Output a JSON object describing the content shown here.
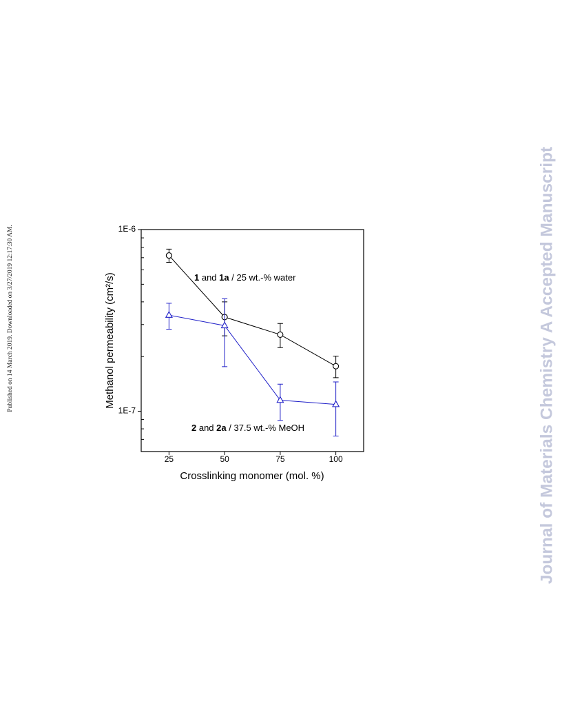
{
  "page": {
    "published_note": "Published on 14 March 2019. Downloaded on 3/27/2019 12:17:30 AM.",
    "watermark": "Journal of Materials Chemistry A Accepted Manuscript"
  },
  "chart_data": {
    "type": "line",
    "x_label": "Crosslinking monomer (mol. %)",
    "y_label": "Methanol permeability (cm²/s)",
    "x": [
      25,
      50,
      75,
      100
    ],
    "xlim": [
      12.5,
      112.5
    ],
    "xticks": [
      25,
      50,
      75,
      100
    ],
    "ylim": [
      6e-08,
      1e-06
    ],
    "log_y": true,
    "yticks": [
      {
        "value": 1e-06,
        "label": "1E-6"
      },
      {
        "value": 1e-07,
        "label": "1E-7"
      }
    ],
    "yminorticks": [
      6e-08,
      7e-08,
      8e-08,
      9e-08,
      2e-07,
      3e-07,
      4e-07,
      5e-07,
      6e-07,
      7e-07,
      8e-07,
      9e-07
    ],
    "series": [
      {
        "color": "#000000",
        "marker": "circle",
        "values": [
          7.2e-07,
          3.3e-07,
          2.64e-07,
          1.77e-07
        ],
        "errors": [
          6e-08,
          7e-08,
          4e-08,
          2.4e-08
        ]
      },
      {
        "color": "#1f1fc8",
        "marker": "triangle",
        "values": [
          3.38e-07,
          2.96e-07,
          1.15e-07,
          1.09e-07
        ],
        "errors": [
          5.5e-08,
          1.2e-07,
          2.6e-08,
          3.6e-08
        ]
      }
    ],
    "annotations": [
      {
        "runs": [
          {
            "text": "1",
            "bold": true
          },
          {
            "text": " and "
          },
          {
            "text": "1a",
            "bold": true
          },
          {
            "text": " / 25 wt.-% water"
          }
        ]
      },
      {
        "runs": [
          {
            "text": "2",
            "bold": true
          },
          {
            "text": " and "
          },
          {
            "text": "2a",
            "bold": true
          },
          {
            "text": " / 37.5 wt.-% MeOH"
          }
        ]
      }
    ]
  }
}
